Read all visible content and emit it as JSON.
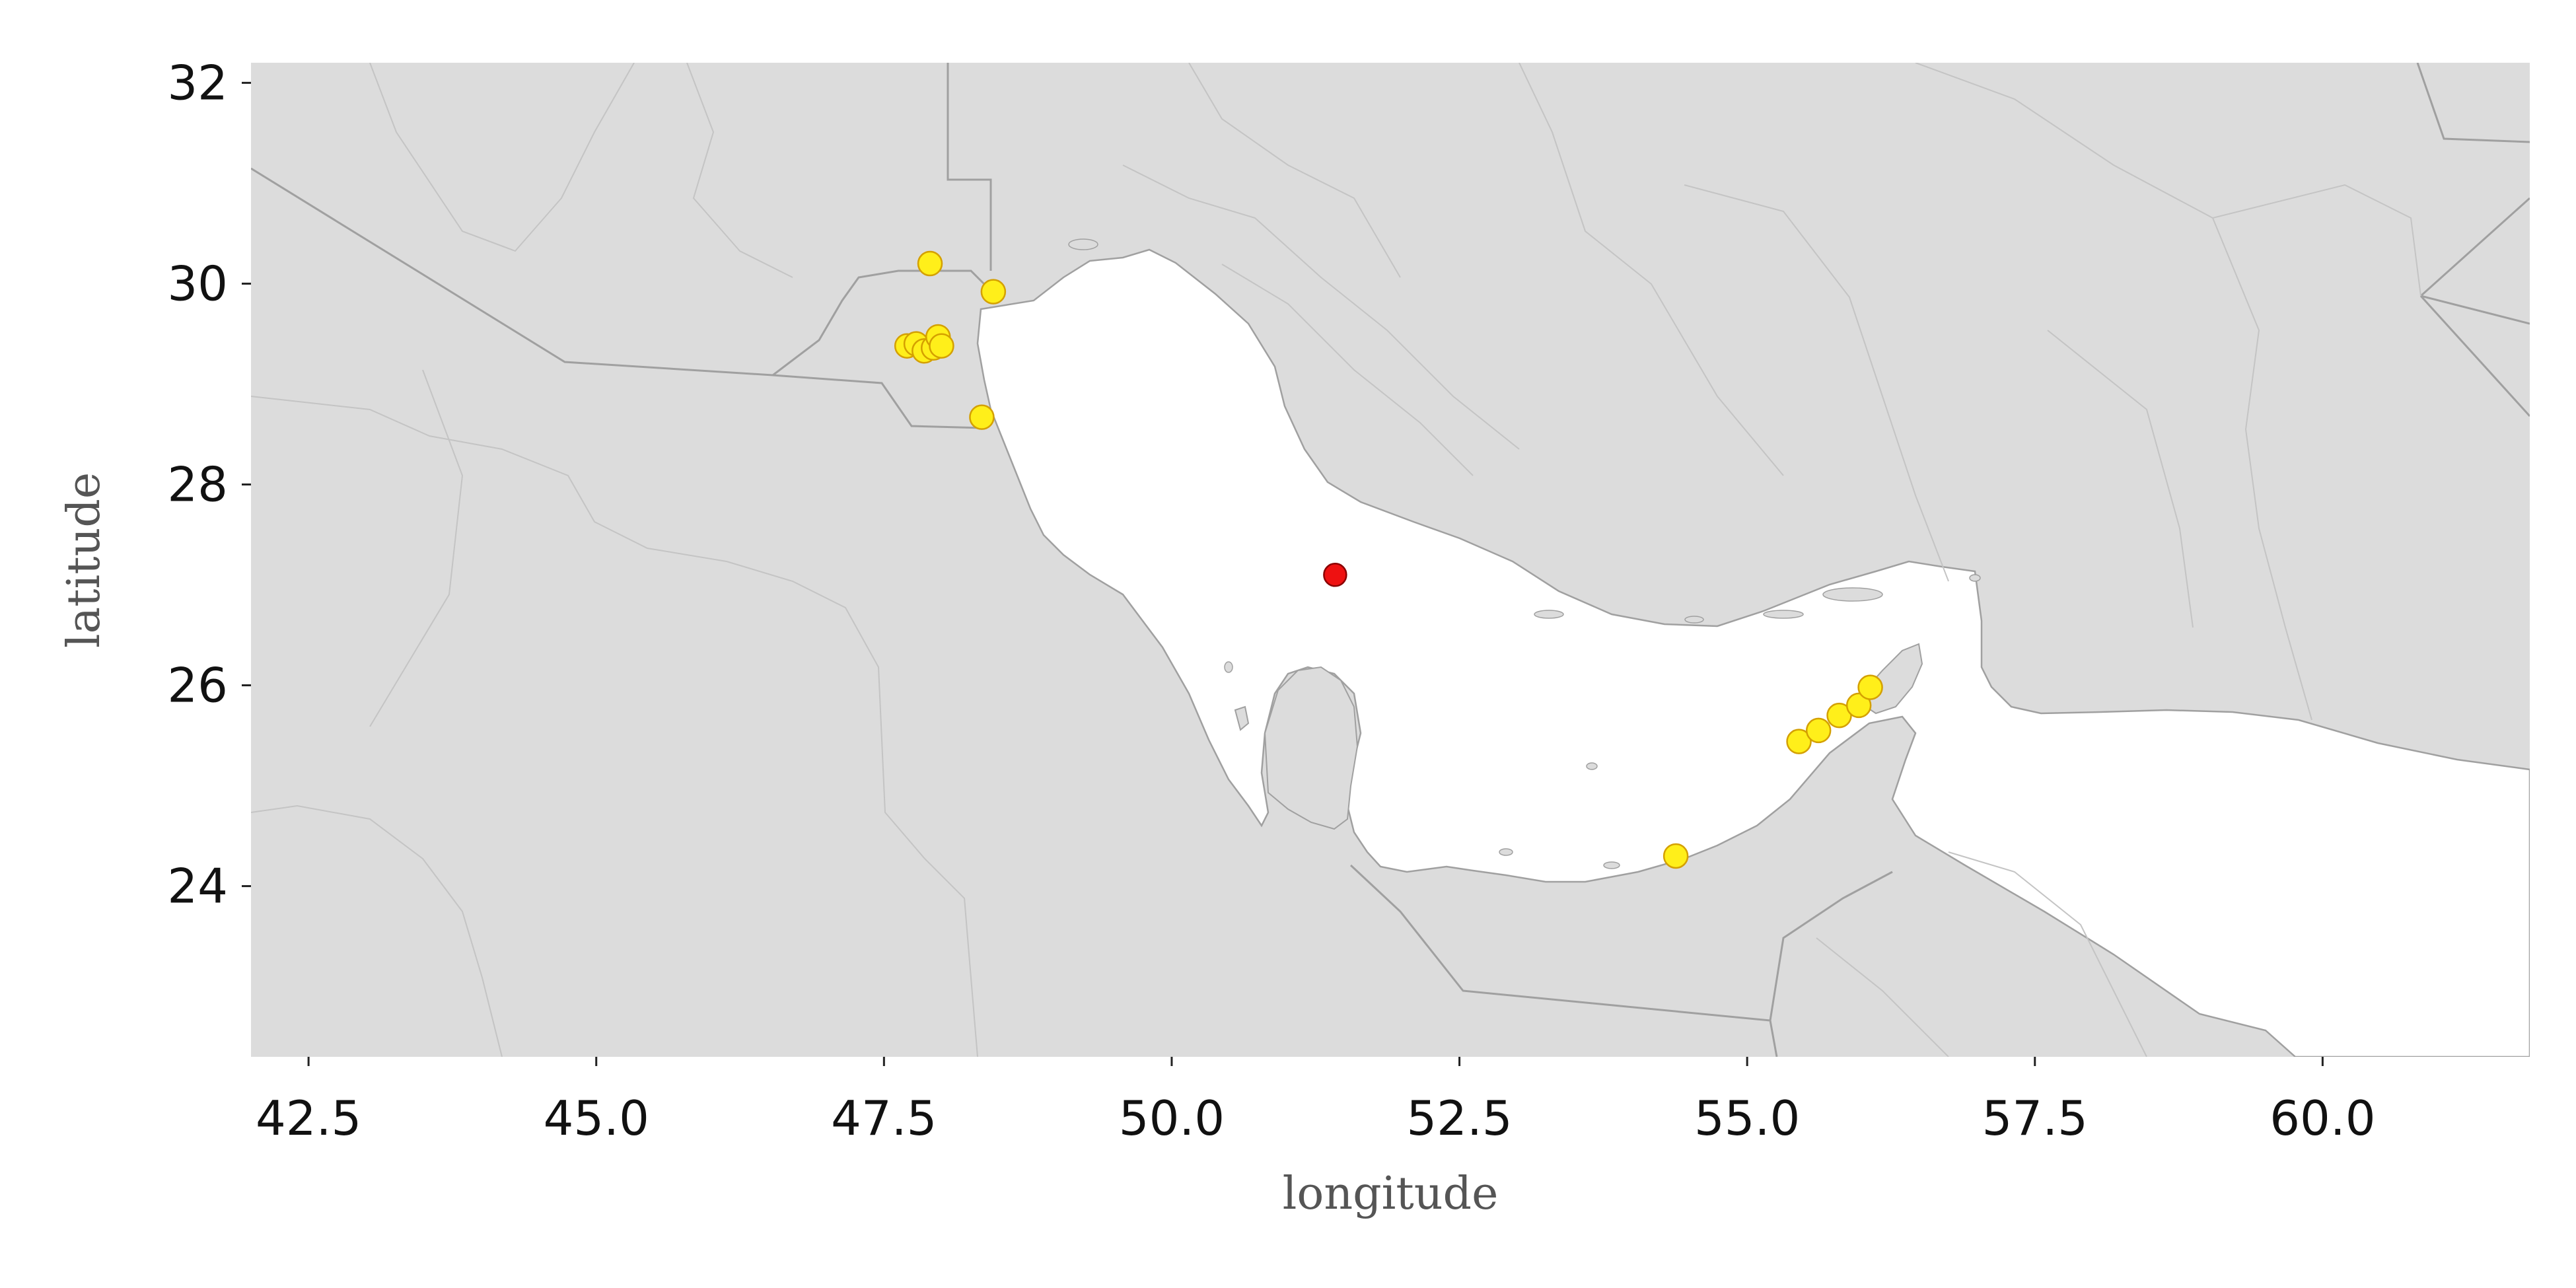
{
  "map": {
    "xlabel": "longitude",
    "ylabel": "latitude",
    "xlim": [
      42.0,
      61.8
    ],
    "ylim": [
      22.3,
      32.2
    ],
    "x_ticks": [
      42.5,
      45.0,
      47.5,
      50.0,
      52.5,
      55.0,
      57.5,
      60.0
    ],
    "y_ticks": [
      24,
      26,
      28,
      30,
      32
    ],
    "x_tick_labels": [
      "42.5",
      "45.0",
      "47.5",
      "50.0",
      "52.5",
      "55.0",
      "57.5",
      "60.0"
    ],
    "y_tick_labels": [
      "24",
      "26",
      "28",
      "30",
      "32"
    ],
    "colors": {
      "land": "#dcdcdc",
      "water": "#ffffff",
      "border": "#a0a0a0",
      "yellow_marker": "#ffef1a",
      "yellow_edge": "#d4a000",
      "red_marker": "#ee1111",
      "red_edge": "#8a0000"
    },
    "points": [
      {
        "lon": 47.9,
        "lat": 30.2,
        "color": "yellow"
      },
      {
        "lon": 48.45,
        "lat": 29.92,
        "color": "yellow"
      },
      {
        "lon": 47.7,
        "lat": 29.38,
        "color": "yellow"
      },
      {
        "lon": 47.78,
        "lat": 29.4,
        "color": "yellow"
      },
      {
        "lon": 47.85,
        "lat": 29.33,
        "color": "yellow"
      },
      {
        "lon": 47.93,
        "lat": 29.36,
        "color": "yellow"
      },
      {
        "lon": 47.97,
        "lat": 29.47,
        "color": "yellow"
      },
      {
        "lon": 48.0,
        "lat": 29.38,
        "color": "yellow"
      },
      {
        "lon": 48.35,
        "lat": 28.67,
        "color": "yellow"
      },
      {
        "lon": 51.42,
        "lat": 27.1,
        "color": "red"
      },
      {
        "lon": 55.45,
        "lat": 25.44,
        "color": "yellow"
      },
      {
        "lon": 55.62,
        "lat": 25.55,
        "color": "yellow"
      },
      {
        "lon": 55.8,
        "lat": 25.7,
        "color": "yellow"
      },
      {
        "lon": 55.97,
        "lat": 25.8,
        "color": "yellow"
      },
      {
        "lon": 56.07,
        "lat": 25.98,
        "color": "yellow"
      },
      {
        "lon": 54.38,
        "lat": 24.3,
        "color": "yellow"
      }
    ]
  }
}
